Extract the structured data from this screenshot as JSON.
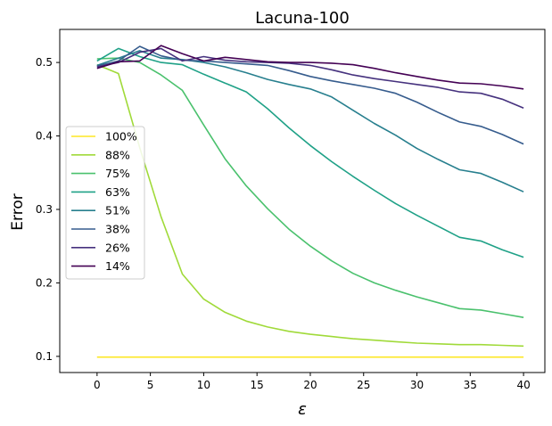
{
  "chart_data": {
    "type": "line",
    "title": "Lacuna-100",
    "xlabel": "ε",
    "ylabel": "Error",
    "xlim": [
      -3.5,
      42.0
    ],
    "ylim": [
      0.078,
      0.545
    ],
    "xticks": [
      0,
      5,
      10,
      15,
      20,
      25,
      30,
      35,
      40
    ],
    "yticks": [
      0.1,
      0.2,
      0.3,
      0.4,
      0.5
    ],
    "ytick_labels": [
      "0.1",
      "0.2",
      "0.3",
      "0.4",
      "0.5"
    ],
    "grid": false,
    "legend_position": "center-left",
    "x": [
      0,
      2,
      4,
      6,
      8,
      10,
      12,
      14,
      16,
      18,
      20,
      22,
      24,
      26,
      28,
      30,
      32,
      34,
      36,
      38,
      40
    ],
    "series": [
      {
        "name": "100%",
        "color": "#fde725",
        "values": [
          0.099,
          0.099,
          0.099,
          0.099,
          0.099,
          0.099,
          0.099,
          0.099,
          0.099,
          0.099,
          0.099,
          0.099,
          0.099,
          0.099,
          0.099,
          0.099,
          0.099,
          0.099,
          0.099,
          0.099,
          0.099
        ]
      },
      {
        "name": "88%",
        "color": "#a0da39",
        "values": [
          0.497,
          0.485,
          0.384,
          0.29,
          0.212,
          0.178,
          0.16,
          0.148,
          0.14,
          0.134,
          0.13,
          0.127,
          0.124,
          0.122,
          0.12,
          0.118,
          0.117,
          0.116,
          0.116,
          0.115,
          0.114
        ]
      },
      {
        "name": "75%",
        "color": "#4ac16d",
        "values": [
          0.505,
          0.506,
          0.5,
          0.483,
          0.462,
          0.415,
          0.369,
          0.332,
          0.301,
          0.273,
          0.25,
          0.23,
          0.213,
          0.2,
          0.19,
          0.181,
          0.173,
          0.165,
          0.163,
          0.158,
          0.153
        ]
      },
      {
        "name": "63%",
        "color": "#1fa187",
        "values": [
          0.502,
          0.519,
          0.508,
          0.5,
          0.497,
          0.484,
          0.472,
          0.46,
          0.437,
          0.411,
          0.387,
          0.365,
          0.345,
          0.326,
          0.308,
          0.292,
          0.277,
          0.262,
          0.257,
          0.245,
          0.235
        ]
      },
      {
        "name": "51%",
        "color": "#277f8e",
        "values": [
          0.496,
          0.506,
          0.516,
          0.506,
          0.504,
          0.5,
          0.494,
          0.486,
          0.477,
          0.47,
          0.464,
          0.453,
          0.435,
          0.417,
          0.401,
          0.383,
          0.368,
          0.354,
          0.349,
          0.337,
          0.324
        ]
      },
      {
        "name": "38%",
        "color": "#365c8d",
        "values": [
          0.495,
          0.502,
          0.522,
          0.509,
          0.503,
          0.502,
          0.5,
          0.498,
          0.496,
          0.489,
          0.481,
          0.475,
          0.47,
          0.465,
          0.458,
          0.446,
          0.432,
          0.419,
          0.413,
          0.402,
          0.389
        ]
      },
      {
        "name": "26%",
        "color": "#46327e",
        "values": [
          0.494,
          0.5,
          0.514,
          0.519,
          0.502,
          0.508,
          0.503,
          0.501,
          0.5,
          0.499,
          0.496,
          0.49,
          0.483,
          0.478,
          0.474,
          0.47,
          0.466,
          0.46,
          0.458,
          0.45,
          0.438
        ]
      },
      {
        "name": "14%",
        "color": "#440154",
        "values": [
          0.492,
          0.501,
          0.502,
          0.523,
          0.512,
          0.502,
          0.507,
          0.504,
          0.501,
          0.5,
          0.5,
          0.499,
          0.497,
          0.492,
          0.486,
          0.481,
          0.476,
          0.472,
          0.471,
          0.468,
          0.464
        ]
      }
    ]
  }
}
